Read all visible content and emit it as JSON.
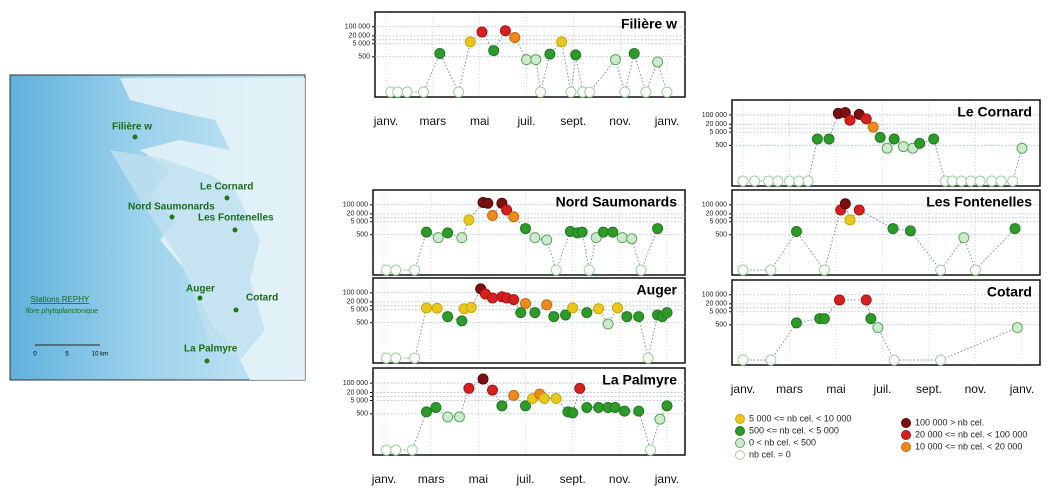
{
  "map": {
    "stations": [
      "Filière w",
      "Le Cornard",
      "Nord Saumonards",
      "Les Fontenelles",
      "Auger",
      "Cotard",
      "La Palmyre"
    ],
    "legend_title": "Stations REPHY",
    "legend_subtitle": "flore phytoplanctonique",
    "scale": [
      "0",
      "5",
      "10 km"
    ]
  },
  "axes": {
    "xlim": [
      0,
      12
    ],
    "xticks": [
      {
        "value": 0,
        "label": "janv."
      },
      {
        "value": 2,
        "label": "mars"
      },
      {
        "value": 4,
        "label": "mai"
      },
      {
        "value": 6,
        "label": "juil."
      },
      {
        "value": 8,
        "label": "sept."
      },
      {
        "value": 10,
        "label": "nov."
      },
      {
        "value": 12,
        "label": "janv."
      }
    ],
    "ylim": [
      0,
      800000
    ],
    "yscale": "log",
    "yticks": [
      {
        "value": 100000,
        "label": "100 000"
      },
      {
        "value": 20000,
        "label": "20 000"
      },
      {
        "value": 5000,
        "label": "5 000"
      },
      500
    ],
    "minor_yticks": [
      10000
    ]
  },
  "legend": [
    {
      "label": "5 000 <= nb cel. < 10 000",
      "color": "#e8c81e",
      "stroke": "#c9a800"
    },
    {
      "label": "500 <= nb cel. < 5 000",
      "color": "#2e9a2a",
      "stroke": "#1f7a1c"
    },
    {
      "label": "0 < nb cel. < 500",
      "color": "#cfe9cf",
      "stroke": "#5aa75a"
    },
    {
      "label": "nb cel. = 0",
      "color": "#ffffff",
      "stroke": "#9fd09f"
    },
    {
      "label": "100 000 > nb cel.",
      "color": "#7a1010",
      "stroke": "#5a0808"
    },
    {
      "label": "20 000 <= nb cel. < 100 000",
      "color": "#d62020",
      "stroke": "#a81212"
    },
    {
      "label": "10 000 <= nb cel. < 20 000",
      "color": "#ee8a1c",
      "stroke": "#c46a08"
    }
  ],
  "chart_data": [
    {
      "type": "scatter",
      "title": "Filière w",
      "show_x_axis": true,
      "x": [
        0.2,
        0.5,
        0.9,
        1.6,
        2.3,
        3.1,
        3.6,
        4.1,
        4.6,
        5.1,
        5.5,
        6.0,
        6.4,
        6.6,
        7.0,
        7.5,
        7.9,
        8.1,
        8.4,
        8.7,
        9.8,
        10.2,
        10.6,
        11.1,
        11.6,
        12.0
      ],
      "values": [
        0,
        0,
        0,
        0,
        900,
        0,
        7000,
        40000,
        1500,
        50000,
        15000,
        300,
        300,
        0,
        800,
        7000,
        0,
        700,
        0,
        0,
        300,
        0,
        900,
        0,
        200,
        0
      ],
      "classes": [
        3,
        3,
        3,
        3,
        1,
        3,
        0,
        5,
        1,
        5,
        6,
        2,
        2,
        3,
        1,
        0,
        3,
        1,
        3,
        3,
        2,
        3,
        1,
        3,
        2,
        3
      ]
    },
    {
      "type": "scatter",
      "title": "Nord Saumonards",
      "show_x_axis": false,
      "x": [
        0.1,
        0.5,
        1.3,
        1.8,
        2.3,
        2.7,
        3.3,
        3.6,
        4.2,
        4.4,
        4.6,
        5.0,
        5.2,
        5.5,
        6.0,
        6.4,
        6.9,
        7.3,
        7.9,
        8.2,
        8.4,
        8.7,
        9.0,
        9.3,
        9.7,
        10.1,
        10.5,
        10.9,
        11.6
      ],
      "values": [
        0,
        0,
        0,
        800,
        300,
        700,
        300,
        7000,
        150000,
        130000,
        15000,
        130000,
        40000,
        12000,
        1500,
        300,
        200,
        0,
        900,
        700,
        800,
        0,
        300,
        800,
        800,
        300,
        250,
        0,
        1500
      ],
      "classes": [
        3,
        3,
        3,
        1,
        2,
        1,
        2,
        0,
        4,
        4,
        6,
        4,
        5,
        6,
        1,
        2,
        2,
        3,
        1,
        1,
        1,
        3,
        2,
        1,
        1,
        2,
        2,
        3,
        1
      ]
    },
    {
      "type": "scatter",
      "title": "Auger",
      "show_x_axis": false,
      "x": [
        0.1,
        0.5,
        1.3,
        1.8,
        2.25,
        2.7,
        3.3,
        3.4,
        3.7,
        4.1,
        4.3,
        4.6,
        5.0,
        5.2,
        5.5,
        5.8,
        6.0,
        6.4,
        6.9,
        7.2,
        7.7,
        8.0,
        8.6,
        9.1,
        9.5,
        9.9,
        10.3,
        10.8,
        11.2,
        11.6,
        11.8,
        12.0
      ],
      "values": [
        0,
        0,
        0,
        7000,
        6500,
        1500,
        700,
        6000,
        7500,
        200000,
        80000,
        40000,
        50000,
        40000,
        30000,
        3000,
        15000,
        3000,
        12000,
        1500,
        2000,
        7000,
        3000,
        6000,
        400,
        7000,
        1500,
        1500,
        0,
        2000,
        1500,
        3000
      ],
      "classes": [
        3,
        3,
        3,
        0,
        0,
        1,
        1,
        0,
        0,
        4,
        5,
        5,
        5,
        5,
        5,
        1,
        6,
        1,
        6,
        1,
        1,
        0,
        1,
        0,
        2,
        0,
        1,
        1,
        3,
        1,
        1,
        1
      ]
    },
    {
      "type": "scatter",
      "title": "La Palmyre",
      "show_x_axis": true,
      "x": [
        0.1,
        0.5,
        1.2,
        1.8,
        2.2,
        2.7,
        3.2,
        3.6,
        4.2,
        4.6,
        5.0,
        5.5,
        6.0,
        6.3,
        6.6,
        6.8,
        7.3,
        7.8,
        8.0,
        8.3,
        8.6,
        9.1,
        9.5,
        9.8,
        10.2,
        10.8,
        11.3,
        11.7,
        12.0
      ],
      "values": [
        0,
        0,
        0,
        700,
        1500,
        300,
        300,
        40000,
        200000,
        30000,
        2000,
        12000,
        2000,
        7000,
        15000,
        7000,
        7000,
        700,
        600,
        40000,
        1500,
        1500,
        1500,
        1500,
        800,
        800,
        0,
        200,
        2000
      ],
      "classes": [
        3,
        3,
        3,
        1,
        1,
        2,
        2,
        5,
        4,
        5,
        1,
        6,
        1,
        0,
        6,
        0,
        0,
        1,
        1,
        5,
        1,
        1,
        1,
        1,
        1,
        1,
        3,
        2,
        1
      ]
    },
    {
      "type": "scatter",
      "title": "Le Cornard",
      "show_x_axis": false,
      "x": [
        0.0,
        0.5,
        1.1,
        1.5,
        2.0,
        2.4,
        2.8,
        3.2,
        3.7,
        4.1,
        4.4,
        4.6,
        5.0,
        5.3,
        5.6,
        5.9,
        6.2,
        6.5,
        6.9,
        7.3,
        7.6,
        8.2,
        8.7,
        9.0,
        9.4,
        9.8,
        10.2,
        10.7,
        11.1,
        11.6,
        12.0
      ],
      "values": [
        0,
        0,
        0,
        0,
        0,
        0,
        0,
        1500,
        1500,
        130000,
        150000,
        40000,
        110000,
        50000,
        12000,
        2000,
        300,
        1500,
        400,
        300,
        700,
        1500,
        0,
        0,
        0,
        0,
        0,
        0,
        0,
        0,
        300
      ],
      "classes": [
        3,
        3,
        3,
        3,
        3,
        3,
        3,
        1,
        1,
        4,
        4,
        5,
        4,
        5,
        6,
        1,
        2,
        1,
        2,
        2,
        1,
        1,
        3,
        3,
        3,
        3,
        3,
        3,
        3,
        3,
        2
      ]
    },
    {
      "type": "scatter",
      "title": "Les Fontenelles",
      "show_x_axis": false,
      "x": [
        0.0,
        1.2,
        2.3,
        3.5,
        4.2,
        4.4,
        4.6,
        5.0,
        6.45,
        7.2,
        8.5,
        9.5,
        10.0,
        11.7
      ],
      "values": [
        0,
        0,
        900,
        0,
        40000,
        120000,
        7000,
        40000,
        1500,
        1000,
        0,
        300,
        0,
        1500
      ],
      "classes": [
        3,
        3,
        1,
        3,
        5,
        4,
        0,
        5,
        1,
        1,
        3,
        2,
        3,
        1
      ]
    },
    {
      "type": "scatter",
      "title": "Cotard",
      "show_x_axis": true,
      "x": [
        0.0,
        1.2,
        2.3,
        3.3,
        3.5,
        4.15,
        5.3,
        5.5,
        5.8,
        6.5,
        8.5,
        11.8
      ],
      "values": [
        0,
        0,
        700,
        1500,
        1500,
        40000,
        40000,
        1500,
        300,
        0,
        0,
        300
      ],
      "classes": [
        3,
        3,
        1,
        1,
        1,
        5,
        5,
        1,
        2,
        3,
        3,
        2
      ]
    }
  ]
}
